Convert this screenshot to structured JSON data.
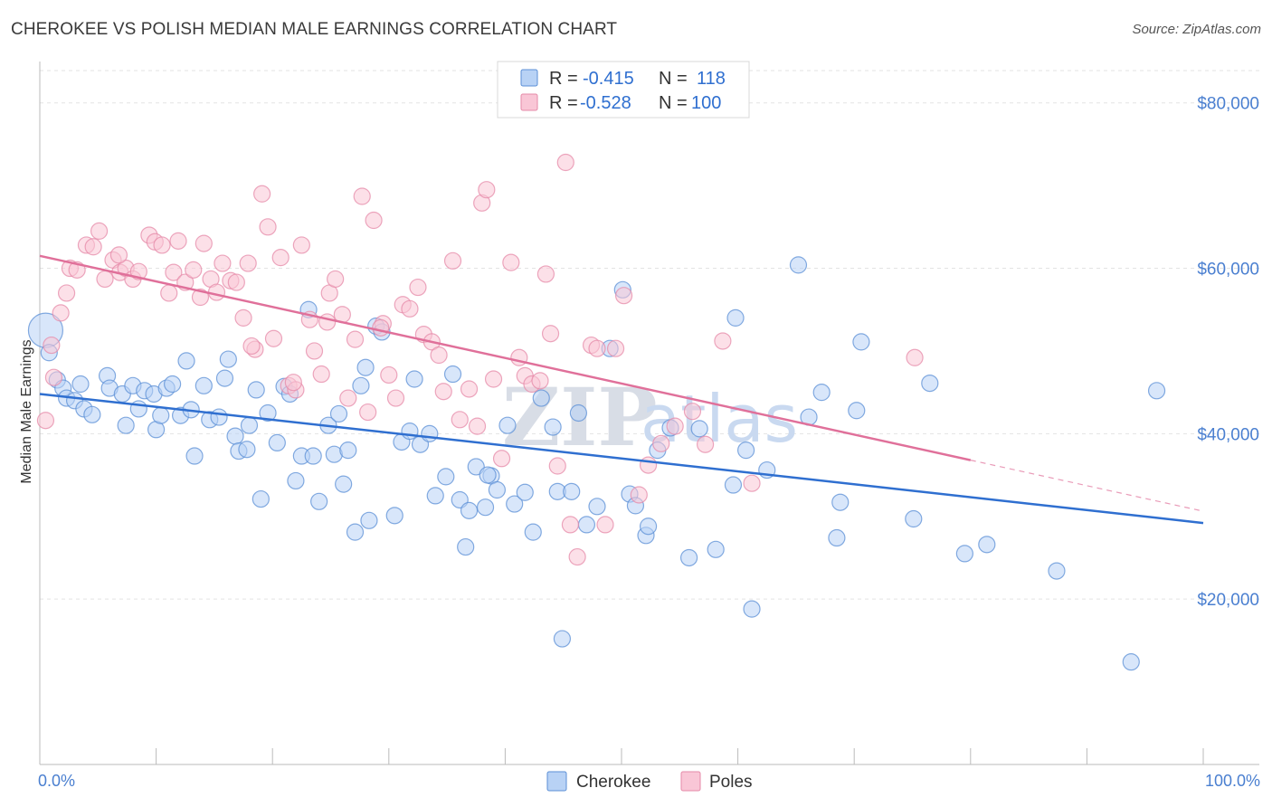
{
  "title": "CHEROKEE VS POLISH MEDIAN MALE EARNINGS CORRELATION CHART",
  "source": "Source: ZipAtlas.com",
  "watermark": {
    "main": "ZIP",
    "sub": "atlas"
  },
  "legend": {
    "items": [
      {
        "r_label": "R =",
        "r_value": "-0.415",
        "n_label": "N =",
        "n_value": "118",
        "fill": "#b8d2f5",
        "stroke": "#5b8fd6"
      },
      {
        "r_label": "R =",
        "r_value": "-0.528",
        "n_label": "N =",
        "n_value": "100",
        "fill": "#f9c6d6",
        "stroke": "#e58aa8"
      }
    ]
  },
  "bottom_legend": [
    "Cherokee",
    "Poles"
  ],
  "chart_data": {
    "type": "scatter",
    "xlabel": "",
    "ylabel": "Median Male Earnings",
    "xlim": [
      0,
      100
    ],
    "ylim": [
      0,
      85000
    ],
    "x_tick_labels": [
      "0.0%",
      "100.0%"
    ],
    "y_tick_labels": [
      "$20,000",
      "$40,000",
      "$60,000",
      "$80,000"
    ],
    "y_ticks": [
      20000,
      40000,
      60000,
      80000
    ],
    "grid": true,
    "colors": {
      "cherokee": "#5b8fd6",
      "cherokee_fill": "#b8d2f5",
      "poles": "#e58aa8",
      "poles_fill": "#f9c6d6",
      "cherokee_line": "#2f6fd0",
      "poles_line": "#e0709a"
    },
    "series": [
      {
        "name": "Cherokee",
        "trend": {
          "x0": 0,
          "y0": 44800,
          "x1": 100,
          "y1": 29200
        },
        "points": [
          [
            0.5,
            52500
          ],
          [
            0.8,
            49800
          ],
          [
            1.5,
            46500
          ],
          [
            2,
            45500
          ],
          [
            2.3,
            44300
          ],
          [
            3,
            44000
          ],
          [
            3.8,
            43000
          ],
          [
            4.5,
            42300
          ],
          [
            3.5,
            46000
          ],
          [
            5.8,
            47000
          ],
          [
            6,
            45500
          ],
          [
            7.1,
            44800
          ],
          [
            7.4,
            41000
          ],
          [
            8,
            45800
          ],
          [
            8.5,
            43000
          ],
          [
            9,
            45200
          ],
          [
            9.8,
            44800
          ],
          [
            10,
            40500
          ],
          [
            10.4,
            42200
          ],
          [
            10.9,
            45500
          ],
          [
            11.4,
            46000
          ],
          [
            12.1,
            42200
          ],
          [
            12.6,
            48800
          ],
          [
            13.0,
            42900
          ],
          [
            13.3,
            37300
          ],
          [
            14.1,
            45800
          ],
          [
            14.6,
            41700
          ],
          [
            15.4,
            42000
          ],
          [
            15.9,
            46700
          ],
          [
            16.2,
            49000
          ],
          [
            16.8,
            39700
          ],
          [
            17.1,
            37900
          ],
          [
            17.8,
            38100
          ],
          [
            18,
            41000
          ],
          [
            18.6,
            45300
          ],
          [
            19,
            32100
          ],
          [
            19.6,
            42500
          ],
          [
            20.4,
            38900
          ],
          [
            21,
            45700
          ],
          [
            21.5,
            44800
          ],
          [
            22,
            34300
          ],
          [
            22.5,
            37300
          ],
          [
            23.1,
            55000
          ],
          [
            23.5,
            37300
          ],
          [
            24,
            31800
          ],
          [
            24.8,
            41000
          ],
          [
            25.3,
            37500
          ],
          [
            25.7,
            42400
          ],
          [
            26.1,
            33900
          ],
          [
            26.5,
            38000
          ],
          [
            27.1,
            28100
          ],
          [
            27.6,
            45800
          ],
          [
            28,
            48000
          ],
          [
            28.3,
            29500
          ],
          [
            28.9,
            53000
          ],
          [
            29.4,
            52300
          ],
          [
            30.5,
            30100
          ],
          [
            31.1,
            39000
          ],
          [
            31.8,
            40300
          ],
          [
            32.2,
            46600
          ],
          [
            32.7,
            38700
          ],
          [
            33.5,
            40000
          ],
          [
            34,
            32500
          ],
          [
            34.9,
            34800
          ],
          [
            35.5,
            47200
          ],
          [
            36.1,
            32000
          ],
          [
            36.6,
            26300
          ],
          [
            36.9,
            30700
          ],
          [
            37.5,
            36000
          ],
          [
            38.3,
            31100
          ],
          [
            38.8,
            34900
          ],
          [
            39.3,
            33200
          ],
          [
            40.2,
            41000
          ],
          [
            40.8,
            31500
          ],
          [
            41.7,
            32900
          ],
          [
            42.4,
            28100
          ],
          [
            43.1,
            44300
          ],
          [
            44.1,
            40800
          ],
          [
            44.5,
            33000
          ],
          [
            44.9,
            15200
          ],
          [
            45.7,
            33000
          ],
          [
            46.3,
            42500
          ],
          [
            47,
            29000
          ],
          [
            47.9,
            31200
          ],
          [
            49,
            50300
          ],
          [
            50.1,
            57400
          ],
          [
            50.7,
            32700
          ],
          [
            51.2,
            31300
          ],
          [
            52.1,
            27700
          ],
          [
            52.3,
            28800
          ],
          [
            53.1,
            38000
          ],
          [
            54.2,
            40700
          ],
          [
            55.8,
            25000
          ],
          [
            56.7,
            40600
          ],
          [
            58.1,
            26000
          ],
          [
            59.6,
            33800
          ],
          [
            59.8,
            54000
          ],
          [
            60.7,
            38000
          ],
          [
            61.2,
            18800
          ],
          [
            62.5,
            35600
          ],
          [
            65.2,
            60400
          ],
          [
            66.1,
            42000
          ],
          [
            67.2,
            45000
          ],
          [
            68.5,
            27400
          ],
          [
            68.8,
            31700
          ],
          [
            70.2,
            42800
          ],
          [
            70.6,
            51100
          ],
          [
            75.1,
            29700
          ],
          [
            76.5,
            46100
          ],
          [
            79.5,
            25500
          ],
          [
            81.4,
            26600
          ],
          [
            87.4,
            23400
          ],
          [
            93.8,
            12400
          ],
          [
            96,
            45200
          ],
          [
            38.5,
            35000
          ]
        ]
      },
      {
        "name": "Poles",
        "trend": {
          "x0": 0,
          "y0": 61500,
          "x1": 80,
          "y1": 36800
        },
        "points": [
          [
            0.5,
            41600
          ],
          [
            1,
            50700
          ],
          [
            1.2,
            46800
          ],
          [
            1.8,
            54600
          ],
          [
            2.3,
            57000
          ],
          [
            2.6,
            60000
          ],
          [
            3.2,
            59800
          ],
          [
            4,
            62800
          ],
          [
            4.6,
            62600
          ],
          [
            5.1,
            64500
          ],
          [
            5.6,
            58700
          ],
          [
            6.3,
            61000
          ],
          [
            6.9,
            59500
          ],
          [
            7.4,
            60000
          ],
          [
            8,
            58700
          ],
          [
            8.5,
            59600
          ],
          [
            9.4,
            64000
          ],
          [
            9.9,
            63200
          ],
          [
            10.5,
            62800
          ],
          [
            11.1,
            57000
          ],
          [
            11.5,
            59500
          ],
          [
            11.9,
            63300
          ],
          [
            12.5,
            58300
          ],
          [
            13.2,
            59800
          ],
          [
            13.8,
            56500
          ],
          [
            14.1,
            63000
          ],
          [
            14.7,
            58700
          ],
          [
            15.2,
            57100
          ],
          [
            15.7,
            60600
          ],
          [
            16.4,
            58500
          ],
          [
            16.9,
            58300
          ],
          [
            17.5,
            54000
          ],
          [
            17.9,
            60600
          ],
          [
            18.5,
            50200
          ],
          [
            19.1,
            69000
          ],
          [
            19.6,
            65000
          ],
          [
            20.1,
            51500
          ],
          [
            20.7,
            61300
          ],
          [
            21.4,
            45800
          ],
          [
            22,
            45300
          ],
          [
            22.5,
            62800
          ],
          [
            23.2,
            53800
          ],
          [
            23.6,
            50000
          ],
          [
            24.2,
            47200
          ],
          [
            24.9,
            57000
          ],
          [
            25.4,
            58700
          ],
          [
            26,
            54400
          ],
          [
            26.5,
            44300
          ],
          [
            27.1,
            51400
          ],
          [
            27.7,
            68700
          ],
          [
            28.2,
            42600
          ],
          [
            28.7,
            65800
          ],
          [
            29.5,
            53300
          ],
          [
            30,
            47100
          ],
          [
            30.6,
            44300
          ],
          [
            31.2,
            55600
          ],
          [
            31.8,
            55100
          ],
          [
            32.5,
            57700
          ],
          [
            33.0,
            52000
          ],
          [
            33.7,
            51100
          ],
          [
            34.3,
            49500
          ],
          [
            34.7,
            45100
          ],
          [
            35.5,
            60900
          ],
          [
            36.1,
            41700
          ],
          [
            36.9,
            45400
          ],
          [
            37.6,
            40900
          ],
          [
            38.0,
            67900
          ],
          [
            38.4,
            69500
          ],
          [
            39,
            46600
          ],
          [
            39.7,
            37000
          ],
          [
            40.5,
            60700
          ],
          [
            41.2,
            49200
          ],
          [
            41.7,
            47000
          ],
          [
            42.3,
            46000
          ],
          [
            43.0,
            46400
          ],
          [
            43.5,
            59300
          ],
          [
            43.9,
            52100
          ],
          [
            44.5,
            36100
          ],
          [
            45.2,
            72800
          ],
          [
            45.6,
            29000
          ],
          [
            46.2,
            25100
          ],
          [
            47.4,
            50700
          ],
          [
            47.9,
            50300
          ],
          [
            48.6,
            29000
          ],
          [
            49.5,
            50300
          ],
          [
            50.2,
            56700
          ],
          [
            51.5,
            32600
          ],
          [
            52.3,
            36200
          ],
          [
            53.4,
            38800
          ],
          [
            54.6,
            40900
          ],
          [
            56.1,
            42700
          ],
          [
            57.2,
            38700
          ],
          [
            58.7,
            51200
          ],
          [
            61.2,
            34000
          ],
          [
            75.2,
            49200
          ],
          [
            24.7,
            53500
          ],
          [
            29.3,
            52800
          ],
          [
            21.8,
            46200
          ],
          [
            18.2,
            50600
          ],
          [
            6.8,
            61600
          ]
        ]
      }
    ]
  }
}
